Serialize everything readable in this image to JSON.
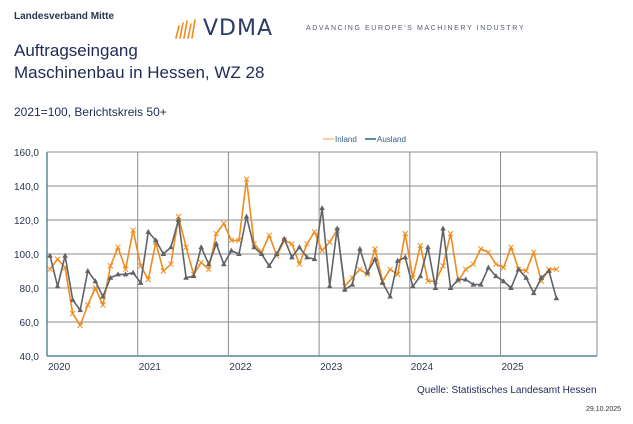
{
  "header": {
    "org": "Landesverband Mitte",
    "logo_text": "VDMA",
    "tagline": "ADVANCING EUROPE'S MACHINERY INDUSTRY"
  },
  "title_line1": "Auftragseingang",
  "title_line2": "Maschinenbau in Hessen, WZ 28",
  "subtitle": "2021=100, Berichtskreis 50+",
  "source": "Quelle: Statistisches Landesamt Hessen",
  "date": "29.10.2025",
  "colors": {
    "inland": "#f08c1e",
    "ausland": "#5f6368",
    "grid": "#8c8c8c",
    "axis": "#2f6f8a"
  },
  "chart_data": {
    "type": "line",
    "title": "Auftragseingang Maschinenbau in Hessen, WZ 28",
    "xlabel": "",
    "ylabel": "2021=100",
    "ylim": [
      40,
      160
    ],
    "yticks": [
      "40,0",
      "60,0",
      "80,0",
      "100,0",
      "120,0",
      "140,0",
      "160,0"
    ],
    "ytick_values": [
      40,
      60,
      80,
      100,
      120,
      140,
      160
    ],
    "xtick_labels": [
      "2020",
      "2021",
      "2022",
      "2023",
      "2024",
      "2025"
    ],
    "x_start": "2020-01",
    "frequency": "monthly",
    "grid": true,
    "legend_position": "top-right",
    "series": [
      {
        "name": "Inland",
        "marker": "x",
        "values": [
          91,
          97,
          92,
          65,
          58,
          70,
          80,
          70,
          93,
          104,
          91,
          114,
          93,
          85,
          107,
          90,
          94,
          122,
          104,
          88,
          95,
          91,
          112,
          118,
          108,
          108,
          144,
          106,
          101,
          111,
          99,
          108,
          106,
          94,
          106,
          113,
          102,
          107,
          114,
          81,
          86,
          91,
          88,
          103,
          84,
          91,
          88,
          112,
          86,
          105,
          84,
          84,
          93,
          112,
          84,
          91,
          94,
          103,
          101,
          94,
          92,
          104,
          91,
          90,
          101,
          84,
          91,
          91
        ]
      },
      {
        "name": "Ausland",
        "marker": "triangle",
        "values": [
          99,
          81,
          99,
          73,
          67,
          90,
          84,
          75,
          86,
          88,
          88,
          89,
          83,
          113,
          108,
          100,
          104,
          120,
          86,
          87,
          104,
          94,
          106,
          94,
          102,
          100,
          122,
          104,
          100,
          93,
          100,
          109,
          98,
          104,
          98,
          97,
          127,
          81,
          115,
          79,
          82,
          103,
          89,
          97,
          83,
          75,
          96,
          98,
          81,
          87,
          104,
          80,
          115,
          80,
          85,
          85,
          82,
          82,
          92,
          87,
          84,
          80,
          91,
          86,
          77,
          86,
          90,
          74
        ]
      }
    ]
  }
}
